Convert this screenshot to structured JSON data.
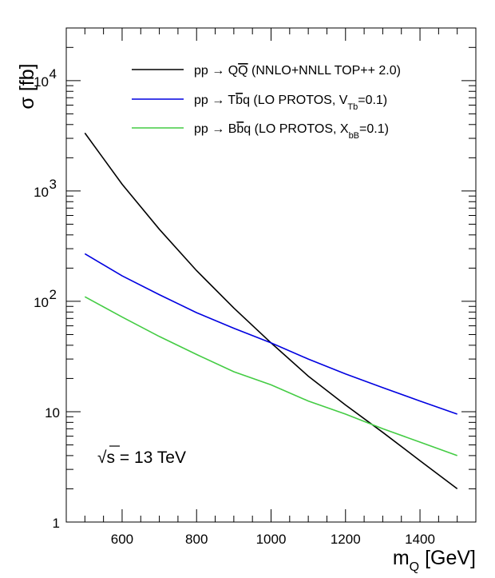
{
  "chart_data": {
    "type": "line",
    "ylabel": "σ [fb]",
    "xlabel": "m_Q [GeV]",
    "xlabel_main": "m",
    "xlabel_sub": "Q",
    "xlabel_tail": " [GeV]",
    "xlim": [
      450,
      1550
    ],
    "ylim": [
      1,
      30000
    ],
    "y_scale": "log",
    "x_ticks": [
      600,
      800,
      1000,
      1200,
      1400
    ],
    "x_tick_labels": [
      "600",
      "800",
      "1000",
      "1200",
      "1400"
    ],
    "y_ticks": [
      {
        "value": 1,
        "base": "1",
        "exp": ""
      },
      {
        "value": 10,
        "base": "10",
        "exp": ""
      },
      {
        "value": 100,
        "base": "10",
        "exp": "2"
      },
      {
        "value": 1000,
        "base": "10",
        "exp": "3"
      },
      {
        "value": 10000,
        "base": "10",
        "exp": "4"
      }
    ],
    "legend_position": "top-right",
    "annotation": {
      "sqrt": "√",
      "body": "s = 13 TeV"
    },
    "series": [
      {
        "name": "pp → QQ̄ (NNLO+NNLL TOP++ 2.0)",
        "legend_parts": [
          {
            "t": "pp → Q",
            "s": "normal"
          },
          {
            "t": "Q",
            "s": "bar"
          },
          {
            "t": " (NNLO+NNLL TOP++ 2.0)",
            "s": "normal"
          }
        ],
        "color": "#000000",
        "x": [
          500,
          600,
          700,
          800,
          900,
          1000,
          1100,
          1200,
          1300,
          1400,
          1500
        ],
        "y": [
          3350,
          1150,
          450,
          190,
          87,
          42,
          21,
          11.5,
          6.5,
          3.6,
          2.0
        ]
      },
      {
        "name": "pp → Tb̄q (LO PROTOS, V_Tb=0.1)",
        "legend_parts": [
          {
            "t": "pp → T",
            "s": "normal"
          },
          {
            "t": "b",
            "s": "bar"
          },
          {
            "t": "q (LO PROTOS, V",
            "s": "normal"
          },
          {
            "t": "Tb",
            "s": "sub"
          },
          {
            "t": "=0.1)",
            "s": "normal"
          }
        ],
        "color": "#0000e0",
        "x": [
          500,
          600,
          700,
          800,
          900,
          1000,
          1100,
          1200,
          1300,
          1400,
          1500
        ],
        "y": [
          270,
          170,
          115,
          79,
          57,
          42,
          30,
          22,
          16.5,
          12.5,
          9.5
        ]
      },
      {
        "name": "pp → Bb̄q (LO PROTOS, X_bB=0.1)",
        "legend_parts": [
          {
            "t": "pp → B",
            "s": "normal"
          },
          {
            "t": "b",
            "s": "bar"
          },
          {
            "t": "q (LO PROTOS, X",
            "s": "normal"
          },
          {
            "t": "bB",
            "s": "sub"
          },
          {
            "t": "=0.1)",
            "s": "normal"
          }
        ],
        "color": "#44cc44",
        "x": [
          500,
          600,
          700,
          800,
          900,
          1000,
          1100,
          1200,
          1300,
          1400,
          1500
        ],
        "y": [
          110,
          72,
          48,
          33,
          23,
          17.5,
          12.5,
          9.5,
          7.0,
          5.3,
          4.0
        ]
      }
    ]
  }
}
